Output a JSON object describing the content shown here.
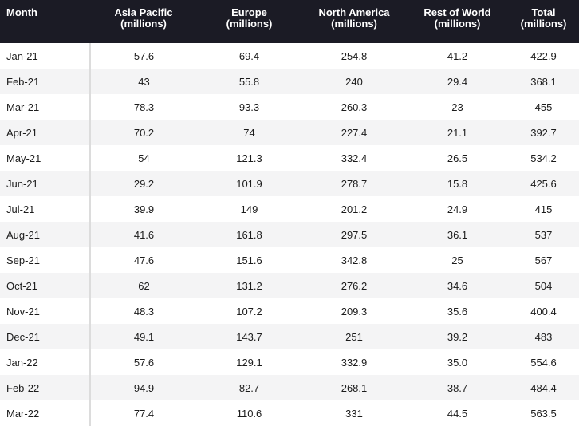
{
  "chart_data": {
    "type": "table",
    "columns": [
      "Month",
      "Asia Pacific (millions)",
      "Europe (millions)",
      "North America (millions)",
      "Rest of World (millions)",
      "Total (millions)"
    ],
    "header": [
      [
        "Month"
      ],
      [
        "Asia Pacific",
        "(millions)"
      ],
      [
        "Europe",
        "(millions)"
      ],
      [
        "North America",
        "(millions)"
      ],
      [
        "Rest of World",
        "(millions)"
      ],
      [
        "Total",
        "(millions)"
      ]
    ],
    "rows": [
      [
        "Jan-21",
        "57.6",
        "69.4",
        "254.8",
        "41.2",
        "422.9"
      ],
      [
        "Feb-21",
        "43",
        "55.8",
        "240",
        "29.4",
        "368.1"
      ],
      [
        "Mar-21",
        "78.3",
        "93.3",
        "260.3",
        "23",
        "455"
      ],
      [
        "Apr-21",
        "70.2",
        "74",
        "227.4",
        "21.1",
        "392.7"
      ],
      [
        "May-21",
        "54",
        "121.3",
        "332.4",
        "26.5",
        "534.2"
      ],
      [
        "Jun-21",
        "29.2",
        "101.9",
        "278.7",
        "15.8",
        "425.6"
      ],
      [
        "Jul-21",
        "39.9",
        "149",
        "201.2",
        "24.9",
        "415"
      ],
      [
        "Aug-21",
        "41.6",
        "161.8",
        "297.5",
        "36.1",
        "537"
      ],
      [
        "Sep-21",
        "47.6",
        "151.6",
        "342.8",
        "25",
        "567"
      ],
      [
        "Oct-21",
        "62",
        "131.2",
        "276.2",
        "34.6",
        "504"
      ],
      [
        "Nov-21",
        "48.3",
        "107.2",
        "209.3",
        "35.6",
        "400.4"
      ],
      [
        "Dec-21",
        "49.1",
        "143.7",
        "251",
        "39.2",
        "483"
      ],
      [
        "Jan-22",
        "57.6",
        "129.1",
        "332.9",
        "35.0",
        "554.6"
      ],
      [
        "Feb-22",
        "94.9",
        "82.7",
        "268.1",
        "38.7",
        "484.4"
      ],
      [
        "Mar-22",
        "77.4",
        "110.6",
        "331",
        "44.5",
        "563.5"
      ]
    ]
  },
  "colors": {
    "header_bg": "#1b1b25",
    "header_text": "#ffffff",
    "stripe": "#f4f4f5",
    "text": "#1c1c1c"
  }
}
